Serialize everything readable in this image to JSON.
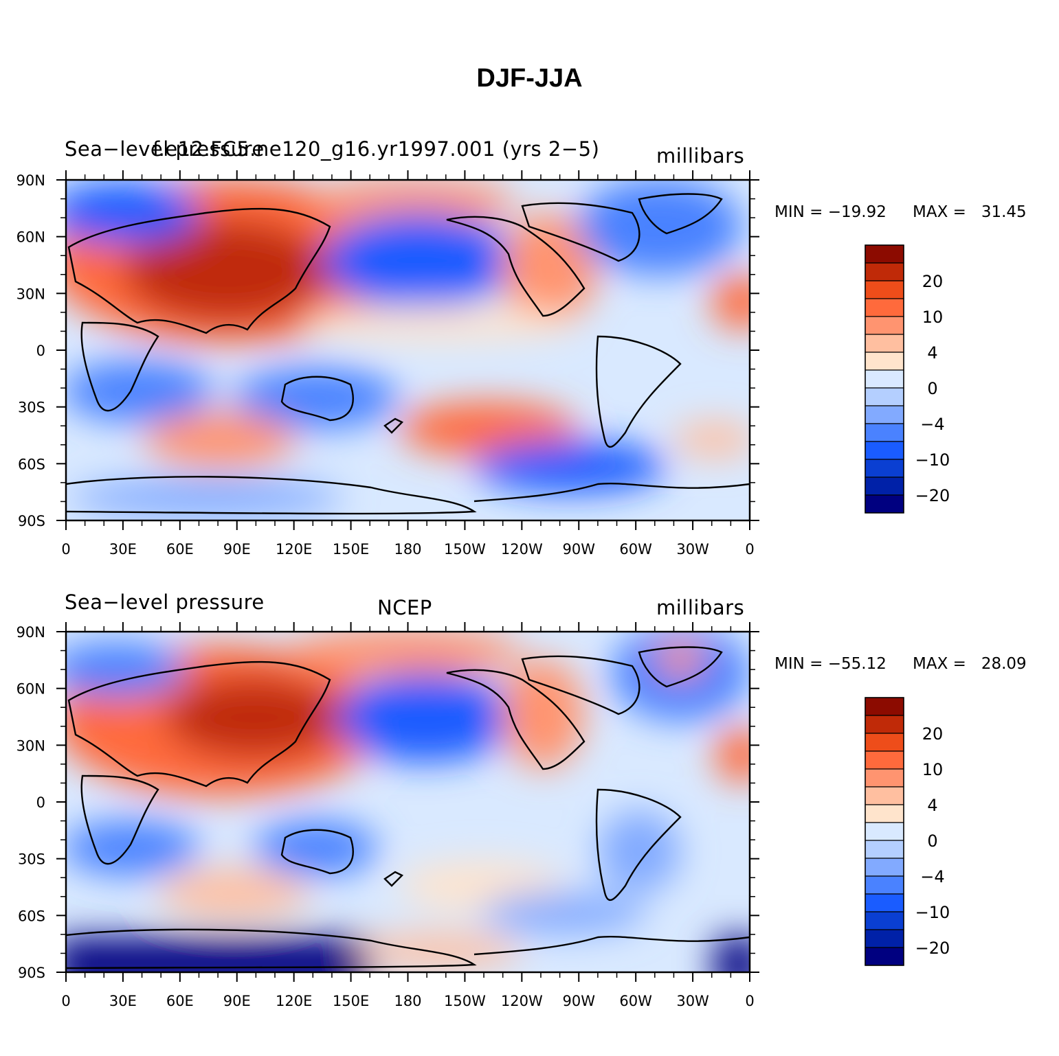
{
  "title": "DJF-JJA",
  "colors": [
    "#000080",
    "#0021a8",
    "#0a3fd2",
    "#1a5cff",
    "#4a82ff",
    "#82aaff",
    "#b4cfff",
    "#d9e9ff",
    "#ffe4cc",
    "#ffbfa0",
    "#ff9470",
    "#ff6a3c",
    "#ee4d1a",
    "#c02a08",
    "#8c0b00"
  ],
  "chart_data": [
    {
      "type": "heatmap",
      "left_title": "Sea−level pressure",
      "center_title": "f.e12.FC5.ne120_g16.yr1997.001 (yrs 2−5)",
      "right_title": "millibars",
      "min_label": "MIN = −19.92",
      "max_label": "MAX =   31.45",
      "xticks": [
        "0",
        "30E",
        "60E",
        "90E",
        "120E",
        "150E",
        "180",
        "150W",
        "120W",
        "90W",
        "60W",
        "30W",
        "0"
      ],
      "yticks": [
        "90N",
        "60N",
        "30N",
        "0",
        "30S",
        "60S",
        "90S"
      ],
      "colorbar_labels": [
        "20",
        "10",
        "4",
        "0",
        "−4",
        "−10",
        "−20"
      ]
    },
    {
      "type": "heatmap",
      "left_title": "Sea−level pressure",
      "center_title": "NCEP",
      "right_title": "millibars",
      "min_label": "MIN = −55.12",
      "max_label": "MAX =   28.09",
      "xticks": [
        "0",
        "30E",
        "60E",
        "90E",
        "120E",
        "150E",
        "180",
        "150W",
        "120W",
        "90W",
        "60W",
        "30W",
        "0"
      ],
      "yticks": [
        "90N",
        "60N",
        "30N",
        "0",
        "30S",
        "60S",
        "90S"
      ],
      "colorbar_labels": [
        "20",
        "10",
        "4",
        "0",
        "−4",
        "−10",
        "−20"
      ]
    }
  ]
}
